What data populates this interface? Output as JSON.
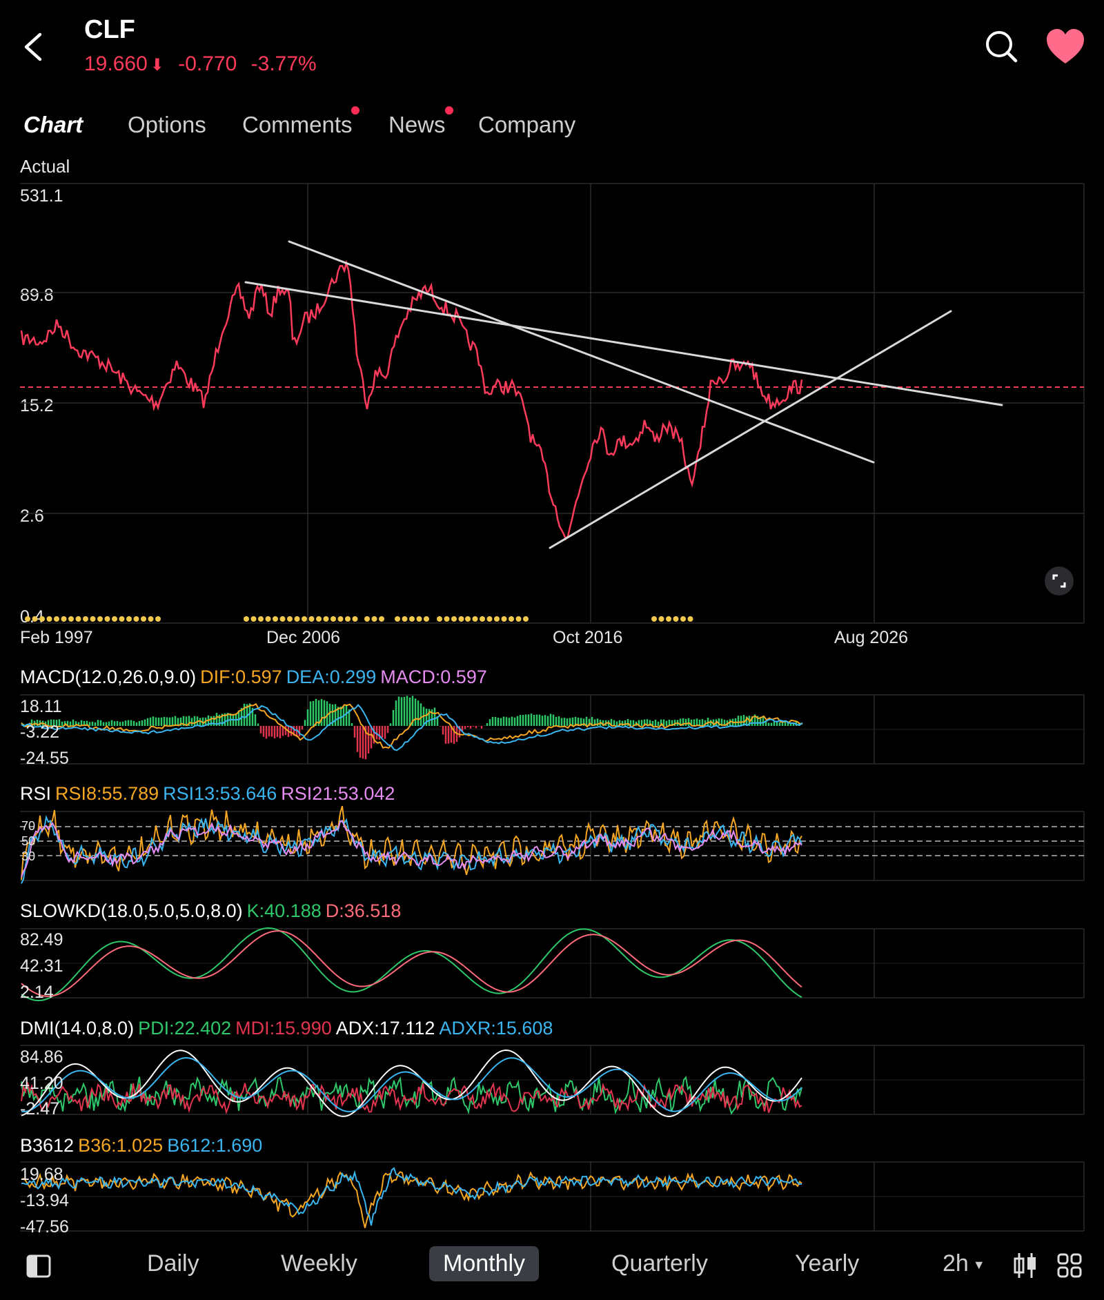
{
  "header": {
    "ticker": "CLF",
    "price": "19.660",
    "change": "-0.770",
    "change_pct": "-3.77%",
    "down_color": "#ff3b5c"
  },
  "tabs": [
    {
      "label": "Chart",
      "active": true
    },
    {
      "label": "Options"
    },
    {
      "label": "Comments",
      "badge": true
    },
    {
      "label": "News",
      "badge": true
    },
    {
      "label": "Company"
    }
  ],
  "main_chart": {
    "mode_label": "Actual",
    "y_ticks": [
      "531.1",
      "89.8",
      "15.2",
      "2.6",
      "0.4"
    ],
    "x_ticks": [
      "Feb 1997",
      "Dec 2006",
      "Oct 2016",
      "Aug 2026"
    ],
    "last_price": 19.66,
    "line_color": "#ff3b5c"
  },
  "macd": {
    "name": "MACD(12.0,26.0,9.0)",
    "dif": "DIF:0.597",
    "dea": "DEA:0.299",
    "macd": "MACD:0.597",
    "y_ticks": [
      "18.11",
      "-3.22",
      "-24.55"
    ]
  },
  "rsi": {
    "name": "RSI",
    "rsi8": "RSI8:55.789",
    "rsi13": "RSI13:53.646",
    "rsi21": "RSI21:53.042",
    "y_ticks": [
      "70",
      "50",
      "30"
    ]
  },
  "slowkd": {
    "name": "SLOWKD(18.0,5.0,5.0,8.0)",
    "k": "K:40.188",
    "d": "D:36.518",
    "y_ticks": [
      "82.49",
      "42.31",
      "2.14"
    ]
  },
  "dmi": {
    "name": "DMI(14.0,8.0)",
    "pdi": "PDI:22.402",
    "mdi": "MDI:15.990",
    "adx": "ADX:17.112",
    "adxr": "ADXR:15.608",
    "y_ticks": [
      "84.86",
      "41.20",
      "-2.47"
    ]
  },
  "b3612": {
    "name": "B3612",
    "b36": "B36:1.025",
    "b612": "B612:1.690",
    "y_ticks": [
      "19.68",
      "-13.94",
      "-47.56"
    ]
  },
  "bottom_bar": {
    "periods": [
      "Daily",
      "Weekly",
      "Monthly",
      "Quarterly",
      "Yearly"
    ],
    "active": "Monthly",
    "interval": "2h"
  },
  "icons": {
    "back": "chevron-left-icon",
    "search": "search-icon",
    "favorite": "heart-icon",
    "fullscreen": "expand-icon",
    "panel": "panel-toggle-icon",
    "candle": "candlestick-icon",
    "grid": "grid-icon"
  },
  "colors": {
    "orange": "#f5a623",
    "blue": "#3bb5f0",
    "pink": "#e58cf0",
    "green": "#2ec86b",
    "red": "#ff3b5c",
    "yellow_dots": "#f2c94c"
  }
}
